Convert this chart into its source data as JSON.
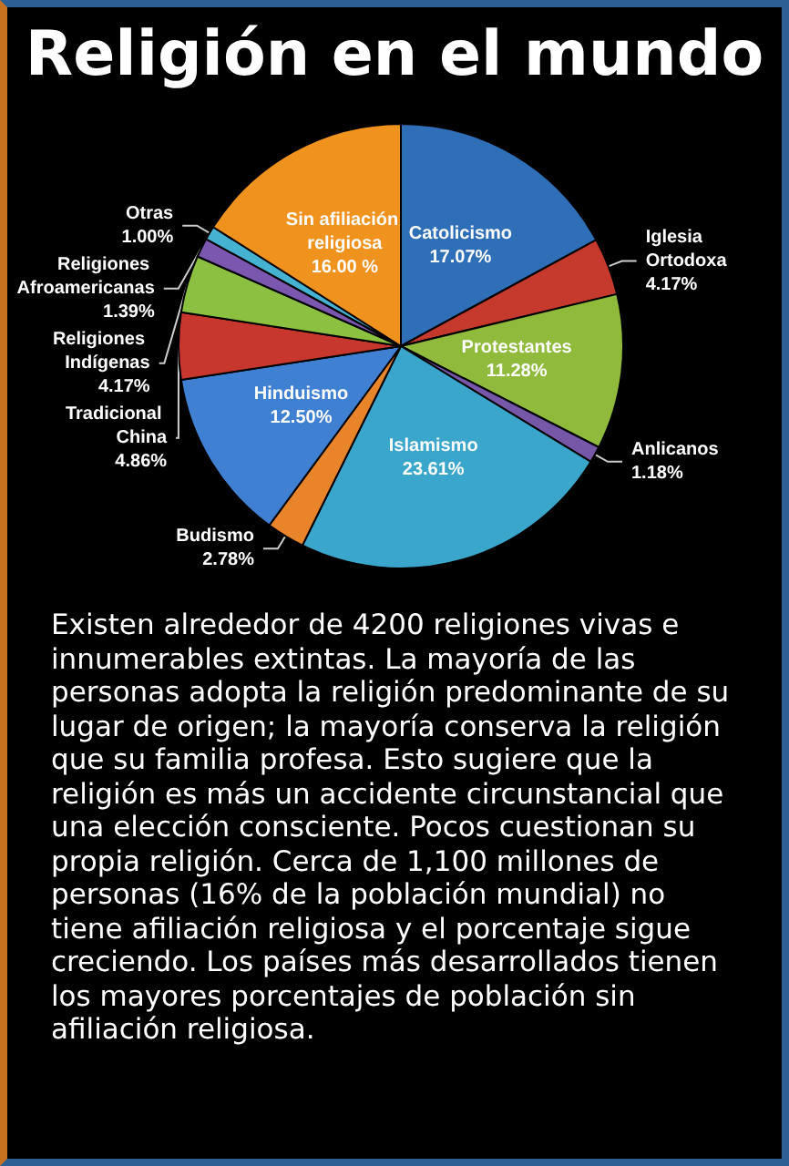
{
  "chart_data": {
    "type": "pie",
    "title": "Religión en el mundo",
    "categories": [
      "Catolicismo",
      "Iglesia Ortodoxa",
      "Protestantes",
      "Anlicanos",
      "Islamismo",
      "Budismo",
      "Hinduismo",
      "Tradicional China",
      "Religiones Indígenas",
      "Religiones Afroamericanas",
      "Otras",
      "Sin afiliación religiosa"
    ],
    "values": [
      17.07,
      4.17,
      11.28,
      1.18,
      23.61,
      2.78,
      12.5,
      4.86,
      4.17,
      1.39,
      1.0,
      16.0
    ],
    "value_labels": [
      "17.07%",
      "4.17%",
      "11.28%",
      "1.18%",
      "23.61%",
      "2.78%",
      "12.50%",
      "4.86%",
      "4.17%",
      "1.39%",
      "1.00%",
      "16.00 %"
    ],
    "colors": [
      "#2f6fb8",
      "#c63a2e",
      "#8fba3c",
      "#7657a8",
      "#3aa6cc",
      "#e8842a",
      "#3f80d2",
      "#c8372e",
      "#8cc040",
      "#7b57b0",
      "#45b2d2",
      "#f0921e"
    ],
    "annotations": [
      "Existen alrededor de 4200 religiones vivas e innumerables extintas. La mayoría de las personas adopta la religión predominante de su lugar de origen; la mayoría conserva la religión que su familia profesa. Esto sugiere que la religión es más un accidente circunstancial que una elección consciente. Pocos cuestionan su propia religión. Cerca de 1,100 millones de personas (16% de la población mundial) no tiene afiliación religiosa y el porcentaje sigue creciendo. Los países más desarrollados tienen los mayores porcentajes de población sin afiliación religiosa."
    ]
  }
}
